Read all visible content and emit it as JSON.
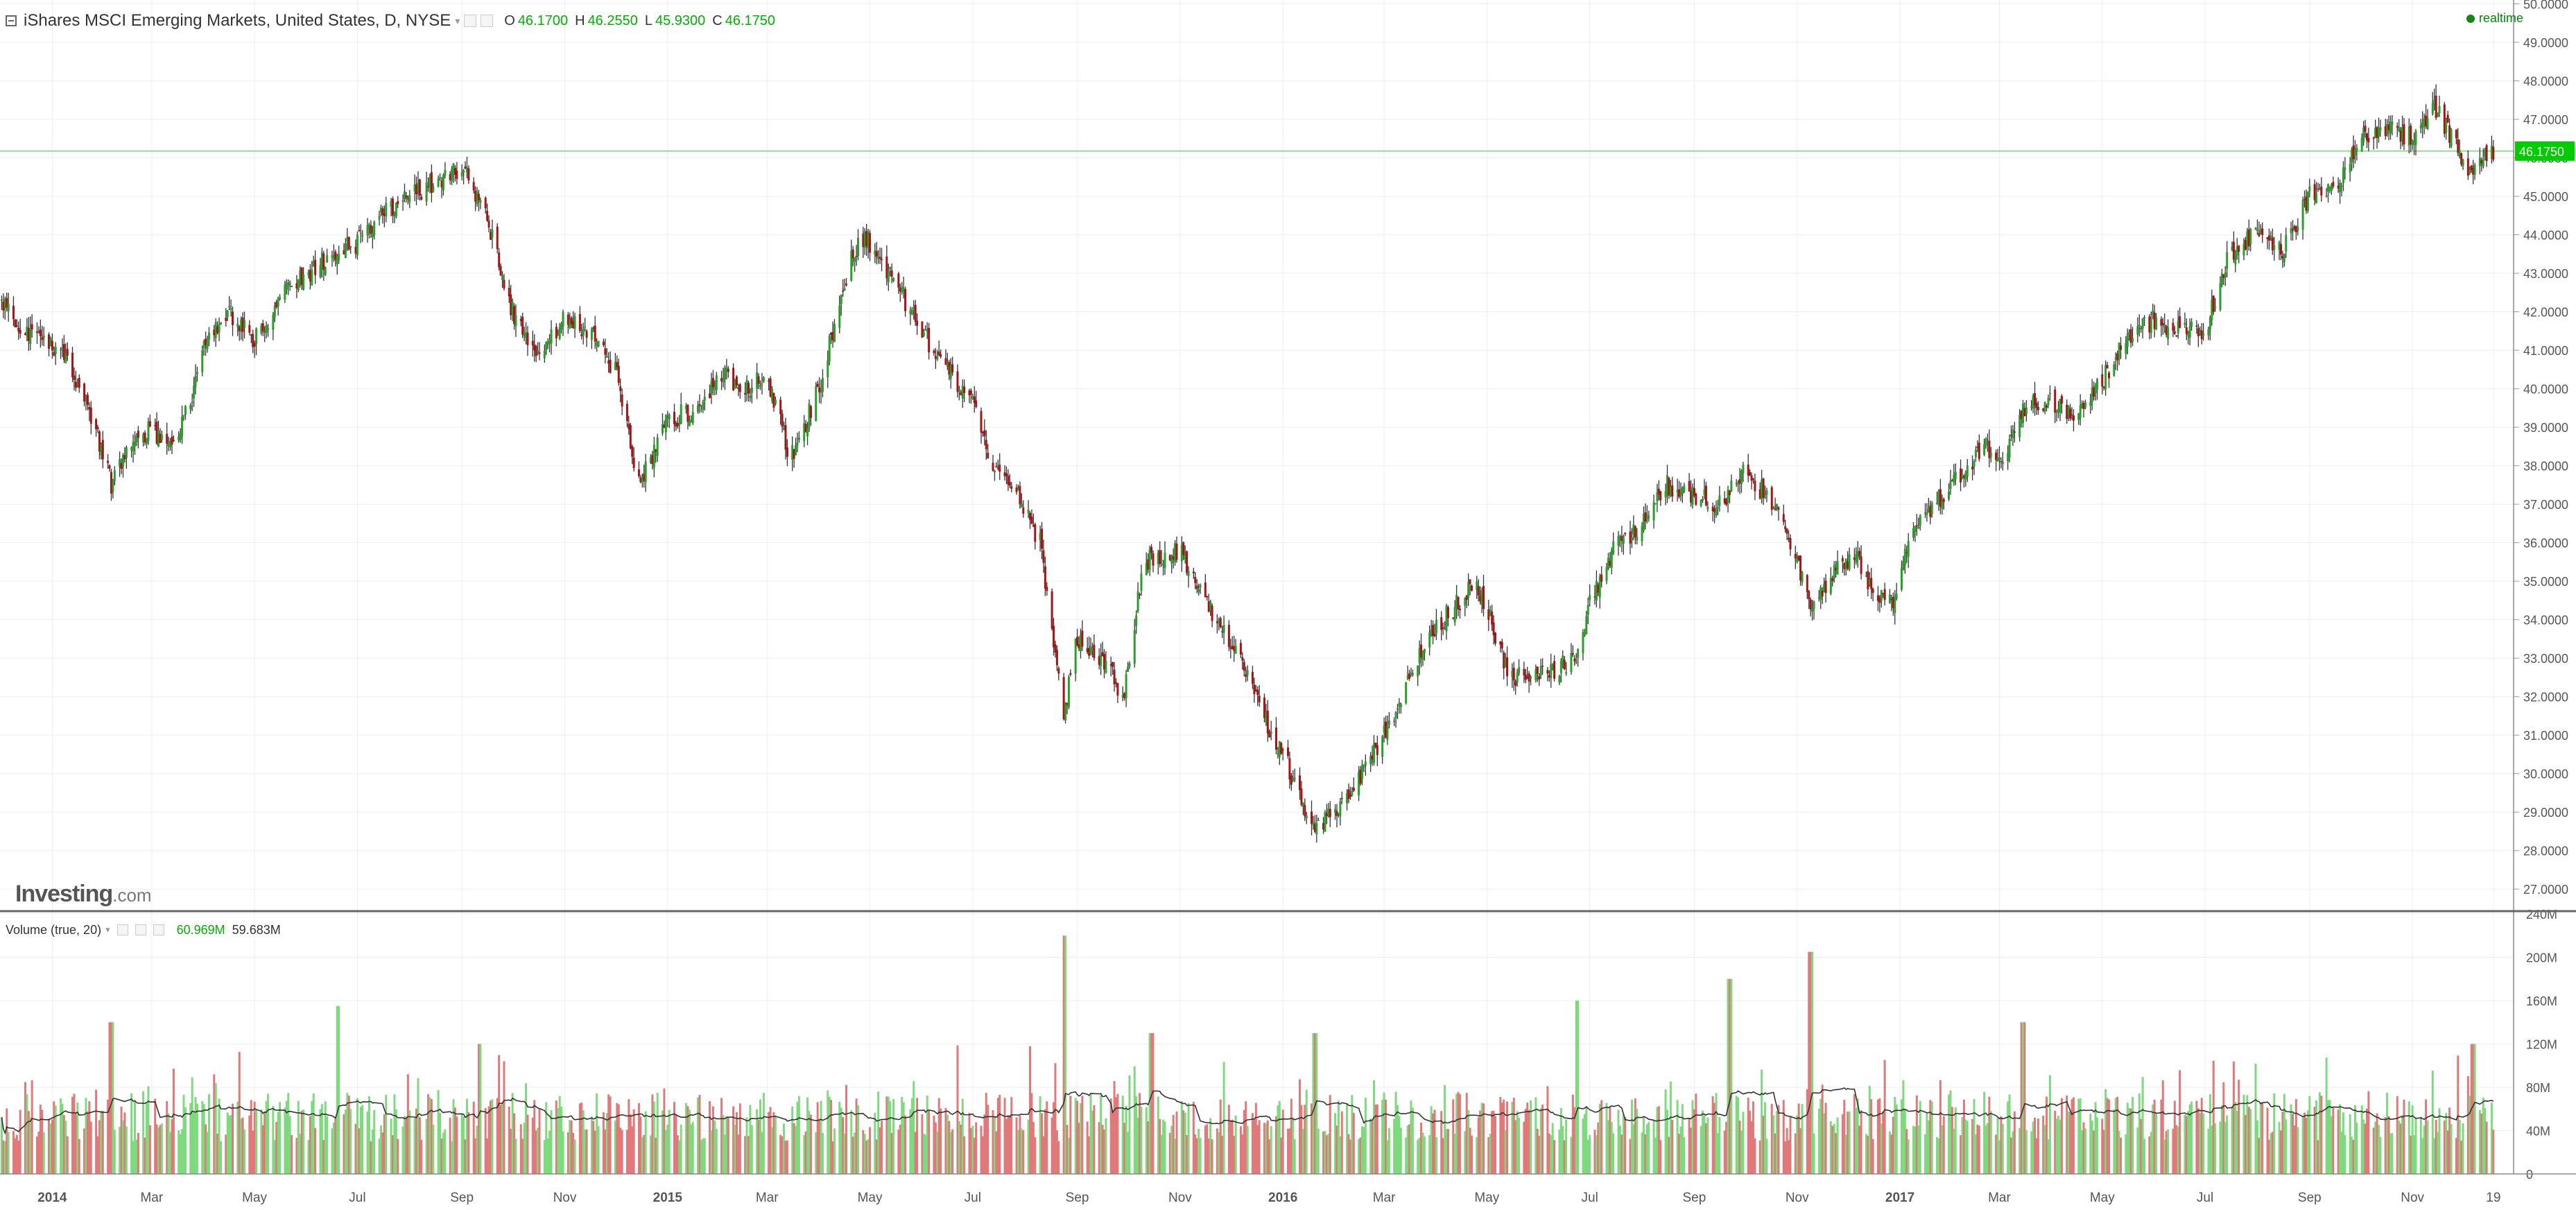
{
  "legend": {
    "title": "iShares MSCI Emerging Markets, United States, D, NYSE",
    "caret": "▾",
    "ohlc": [
      {
        "key": "O",
        "value": "46.1700"
      },
      {
        "key": "H",
        "value": "46.2550"
      },
      {
        "key": "L",
        "value": "45.9300"
      },
      {
        "key": "C",
        "value": "46.1750"
      }
    ]
  },
  "realtime_label": "realtime",
  "watermark": {
    "brand": "Investing",
    "suffix": ".com"
  },
  "volume_legend": {
    "label": "Volume (true, 20)",
    "caret": "▾",
    "value1": "60.969M",
    "value2": "59.683M"
  },
  "colors": {
    "up": "#2a9d2a",
    "down": "#a31515",
    "vol_up": "#7fd97f",
    "vol_down": "#e07a7a",
    "last_price_line": "#6fe06f",
    "last_price_bg": "#00cc00",
    "grid": "#eeeeee",
    "text": "#555555"
  },
  "chart_data": [
    {
      "type": "candlestick",
      "title": "iShares MSCI Emerging Markets, United States, D, NYSE",
      "x_range": [
        "2013-12-01",
        "2017-12-31"
      ],
      "ylim": [
        26.5,
        50.1
      ],
      "y_ticks": [
        "50.0000",
        "49.0000",
        "48.0000",
        "47.0000",
        "46.0000",
        "45.0000",
        "44.0000",
        "43.0000",
        "42.0000",
        "41.0000",
        "40.0000",
        "39.0000",
        "38.0000",
        "37.0000",
        "36.0000",
        "35.0000",
        "34.0000",
        "33.0000",
        "32.0000",
        "31.0000",
        "30.0000",
        "29.0000",
        "28.0000",
        "27.0000"
      ],
      "last_price": "46.1750",
      "last_price_value": 46.175,
      "x_ticks": [
        {
          "label": "2014",
          "date": "2014-01-01",
          "bold": true
        },
        {
          "label": "Mar",
          "date": "2014-03-01"
        },
        {
          "label": "May",
          "date": "2014-05-01"
        },
        {
          "label": "Jul",
          "date": "2014-07-01"
        },
        {
          "label": "Sep",
          "date": "2014-09-01"
        },
        {
          "label": "Nov",
          "date": "2014-11-01"
        },
        {
          "label": "2015",
          "date": "2015-01-01",
          "bold": true
        },
        {
          "label": "Mar",
          "date": "2015-03-01"
        },
        {
          "label": "May",
          "date": "2015-05-01"
        },
        {
          "label": "Jul",
          "date": "2015-07-01"
        },
        {
          "label": "Sep",
          "date": "2015-09-01"
        },
        {
          "label": "Nov",
          "date": "2015-11-01"
        },
        {
          "label": "2016",
          "date": "2016-01-01",
          "bold": true
        },
        {
          "label": "Mar",
          "date": "2016-03-01"
        },
        {
          "label": "May",
          "date": "2016-05-01"
        },
        {
          "label": "Jul",
          "date": "2016-07-01"
        },
        {
          "label": "Sep",
          "date": "2016-09-01"
        },
        {
          "label": "Nov",
          "date": "2016-11-01"
        },
        {
          "label": "2017",
          "date": "2017-01-01",
          "bold": true
        },
        {
          "label": "Mar",
          "date": "2017-03-01"
        },
        {
          "label": "May",
          "date": "2017-05-01"
        },
        {
          "label": "Jul",
          "date": "2017-07-01"
        },
        {
          "label": "Sep",
          "date": "2017-09-01"
        },
        {
          "label": "Nov",
          "date": "2017-11-01"
        },
        {
          "label": "19",
          "date": "2017-12-19"
        }
      ],
      "close_path": [
        [
          "2013-12-01",
          42.3
        ],
        [
          "2013-12-15",
          41.5
        ],
        [
          "2014-01-01",
          41.2
        ],
        [
          "2014-01-15",
          40.3
        ],
        [
          "2014-02-01",
          38.2
        ],
        [
          "2014-02-05",
          37.5
        ],
        [
          "2014-02-20",
          38.8
        ],
        [
          "2014-03-01",
          38.9
        ],
        [
          "2014-03-15",
          38.4
        ],
        [
          "2014-04-01",
          41.0
        ],
        [
          "2014-04-15",
          42.0
        ],
        [
          "2014-05-01",
          41.3
        ],
        [
          "2014-05-20",
          42.5
        ],
        [
          "2014-06-15",
          43.5
        ],
        [
          "2014-07-01",
          43.8
        ],
        [
          "2014-07-15",
          44.6
        ],
        [
          "2014-08-15",
          45.3
        ],
        [
          "2014-09-01",
          45.8
        ],
        [
          "2014-09-15",
          44.5
        ],
        [
          "2014-10-01",
          42.0
        ],
        [
          "2014-10-15",
          40.8
        ],
        [
          "2014-11-01",
          41.8
        ],
        [
          "2014-11-15",
          41.5
        ],
        [
          "2014-12-01",
          40.5
        ],
        [
          "2014-12-15",
          37.5
        ],
        [
          "2015-01-01",
          39.2
        ],
        [
          "2015-01-20",
          39.5
        ],
        [
          "2015-02-01",
          40.5
        ],
        [
          "2015-02-15",
          40.0
        ],
        [
          "2015-03-01",
          40.3
        ],
        [
          "2015-03-15",
          38.2
        ],
        [
          "2015-04-01",
          40.0
        ],
        [
          "2015-04-20",
          43.5
        ],
        [
          "2015-04-28",
          44.0
        ],
        [
          "2015-05-15",
          42.8
        ],
        [
          "2015-06-01",
          41.5
        ],
        [
          "2015-06-15",
          40.5
        ],
        [
          "2015-07-01",
          39.7
        ],
        [
          "2015-07-10",
          38.2
        ],
        [
          "2015-07-25",
          37.5
        ],
        [
          "2015-08-10",
          36.0
        ],
        [
          "2015-08-24",
          31.5
        ],
        [
          "2015-09-01",
          33.5
        ],
        [
          "2015-09-15",
          33.0
        ],
        [
          "2015-09-29",
          32.0
        ],
        [
          "2015-10-10",
          35.5
        ],
        [
          "2015-11-01",
          35.8
        ],
        [
          "2015-11-15",
          34.5
        ],
        [
          "2015-12-01",
          33.5
        ],
        [
          "2015-12-15",
          32.0
        ],
        [
          "2016-01-01",
          30.5
        ],
        [
          "2016-01-20",
          28.5
        ],
        [
          "2016-02-10",
          29.5
        ],
        [
          "2016-03-01",
          31.0
        ],
        [
          "2016-03-15",
          32.5
        ],
        [
          "2016-04-01",
          33.8
        ],
        [
          "2016-04-25",
          35.0
        ],
        [
          "2016-05-15",
          32.5
        ],
        [
          "2016-06-01",
          32.5
        ],
        [
          "2016-06-24",
          33.0
        ],
        [
          "2016-07-01",
          34.5
        ],
        [
          "2016-07-15",
          35.8
        ],
        [
          "2016-08-01",
          36.5
        ],
        [
          "2016-08-15",
          37.5
        ],
        [
          "2016-09-01",
          37.2
        ],
        [
          "2016-09-15",
          37.0
        ],
        [
          "2016-10-01",
          37.8
        ],
        [
          "2016-10-20",
          37.0
        ],
        [
          "2016-11-09",
          34.5
        ],
        [
          "2016-11-25",
          35.3
        ],
        [
          "2016-12-05",
          35.8
        ],
        [
          "2016-12-15",
          34.8
        ],
        [
          "2016-12-28",
          34.5
        ],
        [
          "2017-01-10",
          36.5
        ],
        [
          "2017-02-01",
          37.5
        ],
        [
          "2017-02-20",
          38.5
        ],
        [
          "2017-03-01",
          38.0
        ],
        [
          "2017-03-15",
          39.5
        ],
        [
          "2017-04-01",
          39.7
        ],
        [
          "2017-04-15",
          39.3
        ],
        [
          "2017-05-01",
          40.2
        ],
        [
          "2017-05-15",
          41.3
        ],
        [
          "2017-06-01",
          41.8
        ],
        [
          "2017-06-15",
          41.5
        ],
        [
          "2017-07-01",
          41.5
        ],
        [
          "2017-07-15",
          43.5
        ],
        [
          "2017-08-01",
          44.0
        ],
        [
          "2017-08-15",
          43.5
        ],
        [
          "2017-09-01",
          45.0
        ],
        [
          "2017-09-20",
          45.5
        ],
        [
          "2017-10-01",
          46.5
        ],
        [
          "2017-10-15",
          46.8
        ],
        [
          "2017-11-01",
          46.5
        ],
        [
          "2017-11-15",
          47.3
        ],
        [
          "2017-11-25",
          46.5
        ],
        [
          "2017-12-05",
          45.5
        ],
        [
          "2017-12-19",
          46.17
        ]
      ]
    },
    {
      "type": "bar",
      "title": "Volume (true, 20)",
      "ylim": [
        0,
        240
      ],
      "y_unit": "M",
      "y_ticks": [
        "240M",
        "200M",
        "160M",
        "120M",
        "80M",
        "40M",
        "0"
      ],
      "x_range": [
        "2013-12-01",
        "2017-12-31"
      ],
      "volume_spikes": [
        [
          "2014-02-05",
          140
        ],
        [
          "2014-06-20",
          155
        ],
        [
          "2014-09-12",
          120
        ],
        [
          "2015-08-24",
          220
        ],
        [
          "2015-10-15",
          130
        ],
        [
          "2016-01-20",
          130
        ],
        [
          "2016-06-24",
          160
        ],
        [
          "2016-09-22",
          180
        ],
        [
          "2016-11-09",
          205
        ],
        [
          "2017-03-15",
          140
        ],
        [
          "2017-12-07",
          120
        ]
      ]
    }
  ]
}
